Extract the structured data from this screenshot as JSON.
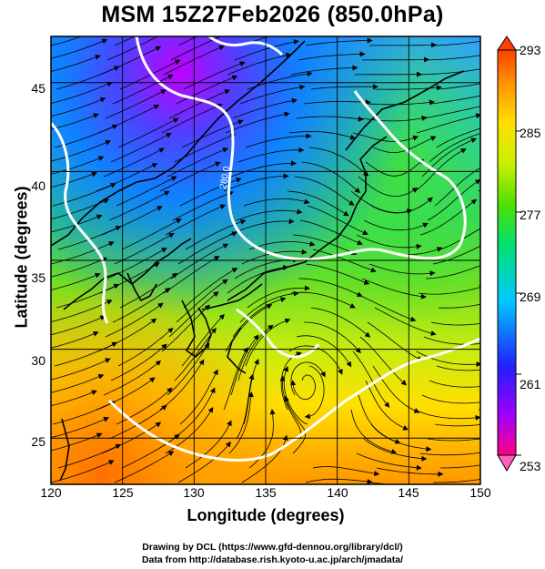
{
  "title": "MSM 15Z27Feb2026 (850.0hPa)",
  "xlabel": "Longitude (degrees)",
  "ylabel": "Latitude  (degrees)",
  "credits": [
    "Drawing by DCL (https://www.gfd-dennou.org/library/dcl/)",
    "Data from http://database.rish.kyoto-u.ac.jp/arch/jmadata/"
  ],
  "map": {
    "lon_range": [
      120,
      150
    ],
    "lat_range": [
      22.4,
      47.6
    ],
    "lon_ticks": [
      "120",
      "125",
      "130",
      "135",
      "140",
      "145",
      "150"
    ],
    "lat_ticks": [
      "25",
      "30",
      "35",
      "40",
      "45"
    ],
    "contour_labels": [
      "280.0"
    ]
  },
  "colorbar": {
    "range": [
      253,
      293
    ],
    "tick_labels": [
      "293",
      "285",
      "277",
      "269",
      "261",
      "253"
    ],
    "colors": [
      "#ff0080",
      "#a000ff",
      "#2020ff",
      "#00c8ff",
      "#00e070",
      "#50e000",
      "#c8f000",
      "#ffe000",
      "#ff9000",
      "#ff4000"
    ]
  },
  "colors": {
    "background": "#ffffff",
    "contour": "#ffffff",
    "coastline": "#000000",
    "streamline": "#000000"
  }
}
